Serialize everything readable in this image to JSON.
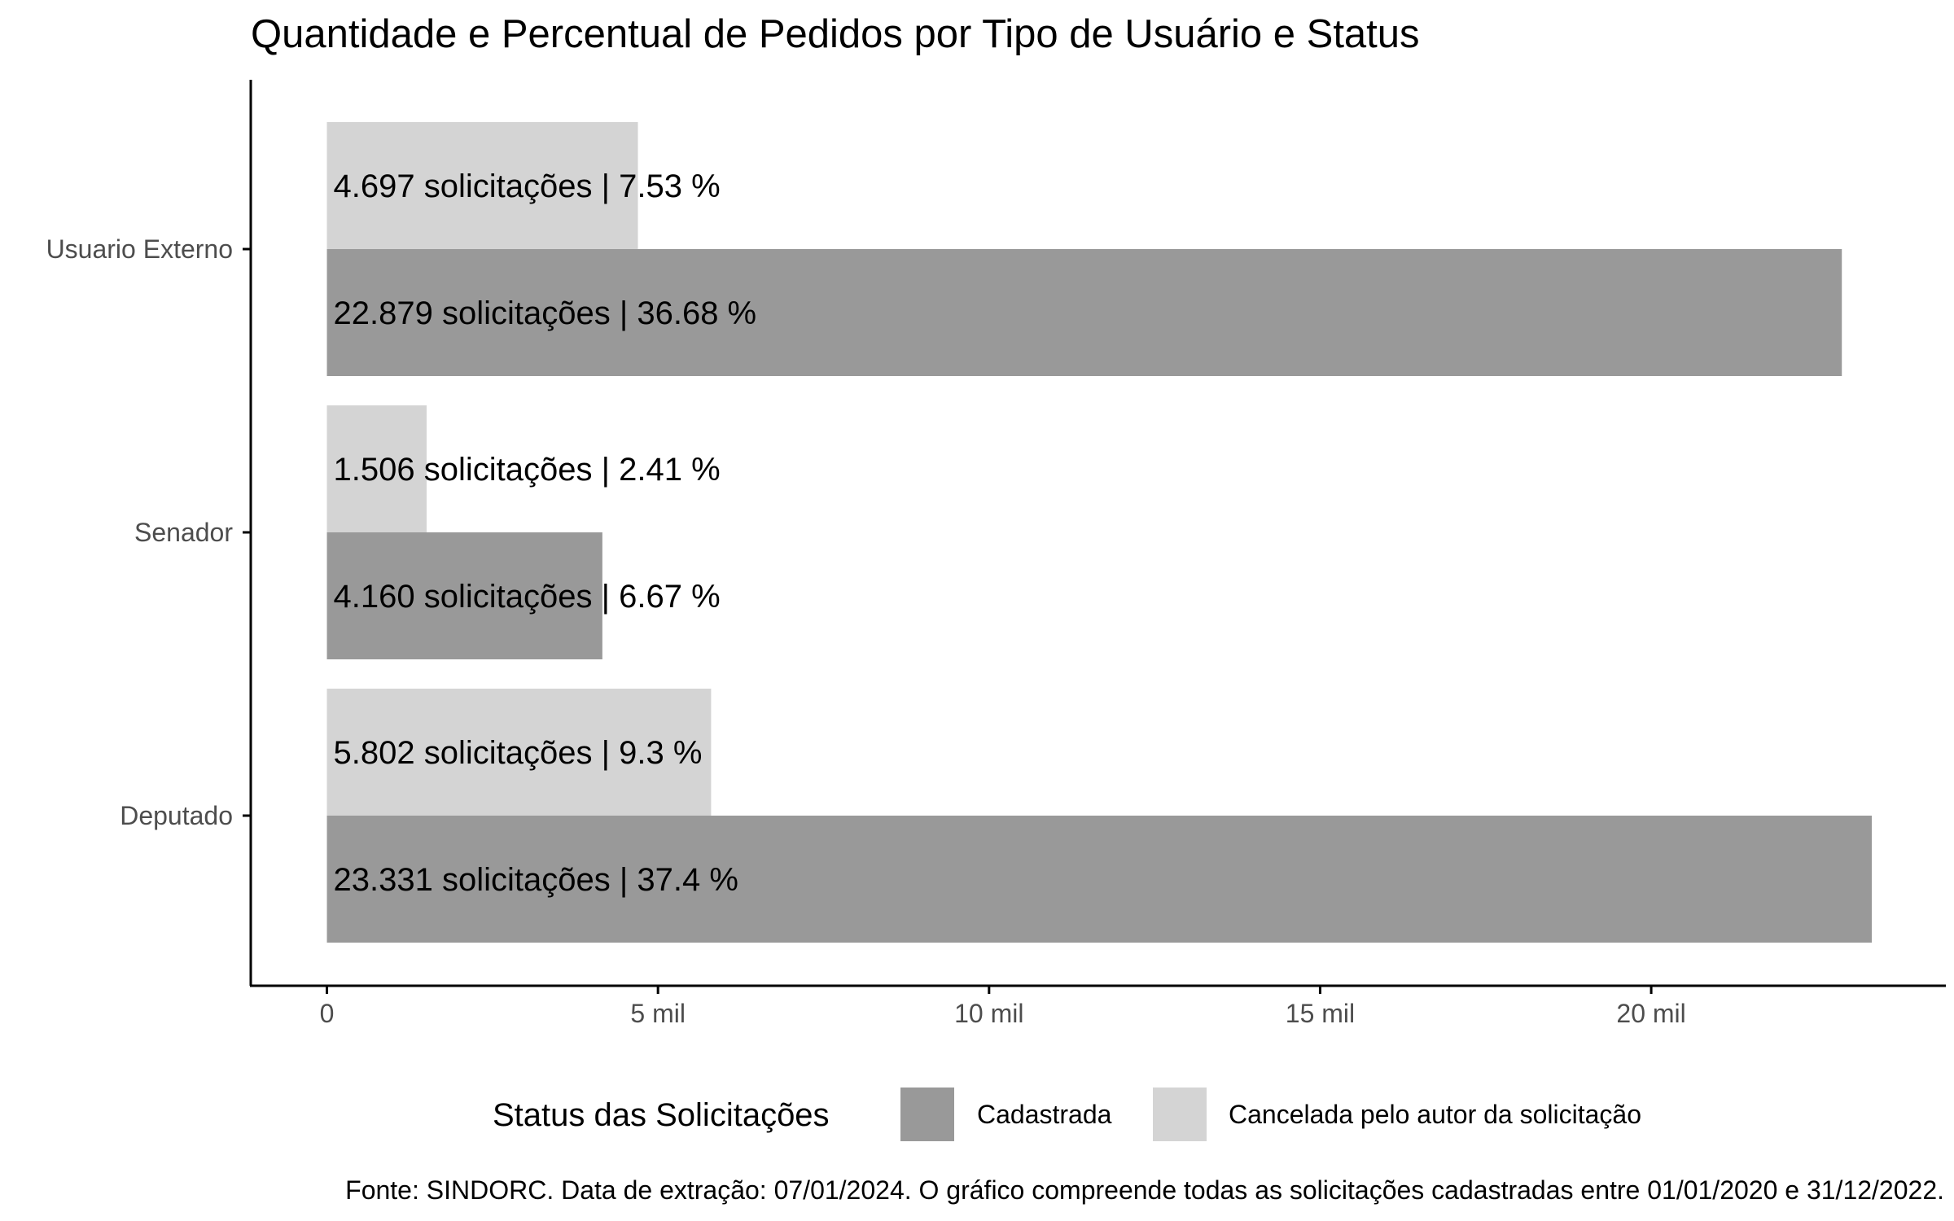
{
  "chart_data": {
    "type": "bar",
    "orientation": "horizontal",
    "title": "Quantidade e Percentual de Pedidos por Tipo de Usuário e Status",
    "caption": "Fonte: SINDORC. Data de extração: 07/01/2024. O gráfico compreende todas as solicitações cadastradas entre 01/01/2020 e 31/12/2022.",
    "categories": [
      "Usuario Externo",
      "Senador",
      "Deputado"
    ],
    "series": [
      {
        "name": "Cadastrada",
        "color": "#999999",
        "values": [
          22879,
          4160,
          23331
        ],
        "labels": [
          "22.879 solicitações | 36.68 %",
          "4.160 solicitações | 6.67 %",
          "23.331 solicitações | 37.4 %"
        ]
      },
      {
        "name": "Cancelada pelo autor da solicitação",
        "color": "#d4d4d4",
        "values": [
          4697,
          1506,
          5802
        ],
        "labels": [
          "4.697 solicitações | 7.53 %",
          "1.506 solicitações | 2.41 %",
          "5.802 solicitações | 9.3 %"
        ]
      }
    ],
    "x_ticks": [
      {
        "value": 0,
        "label": "0"
      },
      {
        "value": 5000,
        "label": "5 mil"
      },
      {
        "value": 10000,
        "label": "10 mil"
      },
      {
        "value": 15000,
        "label": "15 mil"
      },
      {
        "value": 20000,
        "label": "20 mil"
      }
    ],
    "xlim": [
      -1150,
      24450
    ],
    "xlabel": "",
    "ylabel": "",
    "grid": false,
    "legend": {
      "title": "Status das Solicitações",
      "position": "bottom",
      "entries": [
        "Cadastrada",
        "Cancelada pelo autor da solicitação"
      ]
    }
  }
}
